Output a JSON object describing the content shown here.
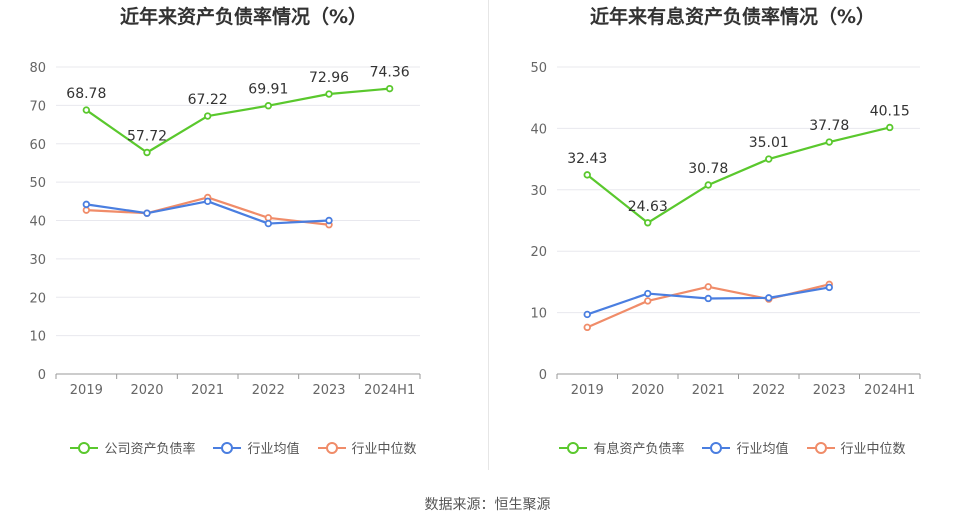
{
  "chart_data": [
    {
      "type": "line",
      "title": "近年来资产负债率情况（%）",
      "categories": [
        "2019",
        "2020",
        "2021",
        "2022",
        "2023",
        "2024H1"
      ],
      "ylim": [
        0,
        80
      ],
      "yticks": [
        0,
        10,
        20,
        30,
        40,
        50,
        60,
        70,
        80
      ],
      "grid": true,
      "legend_position": "bottom",
      "series": [
        {
          "name": "公司资产负债率",
          "color": "#5ac82d",
          "values": [
            68.78,
            57.72,
            67.22,
            69.91,
            72.96,
            74.36
          ],
          "labels": [
            "68.78",
            "57.72",
            "67.22",
            "69.91",
            "72.96",
            "74.36"
          ]
        },
        {
          "name": "行业均值",
          "color": "#4a7ee0",
          "values": [
            44.2,
            41.9,
            45.0,
            39.2,
            40.0,
            null
          ]
        },
        {
          "name": "行业中位数",
          "color": "#f08c69",
          "values": [
            42.7,
            41.9,
            46.0,
            40.7,
            38.9,
            null
          ]
        }
      ]
    },
    {
      "type": "line",
      "title": "近年来有息资产负债率情况（%）",
      "categories": [
        "2019",
        "2020",
        "2021",
        "2022",
        "2023",
        "2024H1"
      ],
      "ylim": [
        0,
        50
      ],
      "yticks": [
        0,
        10,
        20,
        30,
        40,
        50
      ],
      "grid": true,
      "legend_position": "bottom",
      "series": [
        {
          "name": "有息资产负债率",
          "color": "#5ac82d",
          "values": [
            32.43,
            24.63,
            30.78,
            35.01,
            37.78,
            40.15
          ],
          "labels": [
            "32.43",
            "24.63",
            "30.78",
            "35.01",
            "37.78",
            "40.15"
          ]
        },
        {
          "name": "行业均值",
          "color": "#4a7ee0",
          "values": [
            9.7,
            13.1,
            12.3,
            12.4,
            14.1,
            null
          ]
        },
        {
          "name": "行业中位数",
          "color": "#f08c69",
          "values": [
            7.6,
            11.9,
            14.2,
            12.2,
            14.6,
            null
          ]
        }
      ]
    }
  ],
  "source_text": "数据来源：恒生聚源"
}
